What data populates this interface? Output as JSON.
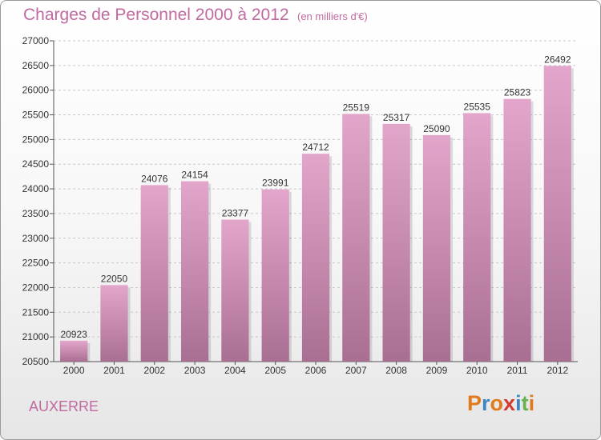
{
  "header": {
    "title": "Charges de Personnel 2000 à 2012",
    "subtitle": "(en milliers d'€)"
  },
  "footer": {
    "city": "AUXERRE",
    "logo": {
      "text": "Proxiti",
      "letters": [
        {
          "ch": "P",
          "color": "#e07a1c"
        },
        {
          "ch": "r",
          "color": "#3a86c8"
        },
        {
          "ch": "o",
          "color": "#e07a1c"
        },
        {
          "ch": "x",
          "color": "#d23a2e"
        },
        {
          "ch": "i",
          "color": "#3a86c8"
        },
        {
          "ch": "t",
          "color": "#6ab04c"
        },
        {
          "ch": "i",
          "color": "#e07a1c"
        }
      ]
    }
  },
  "colors": {
    "bar_top": "#e3a6cb",
    "bar_bottom": "#a96f92",
    "title": "#c06aa0"
  },
  "chart_data": {
    "type": "bar",
    "title": "Charges de Personnel 2000 à 2012",
    "subtitle": "(en milliers d'€)",
    "xlabel": "",
    "ylabel": "",
    "categories": [
      "2000",
      "2001",
      "2002",
      "2003",
      "2004",
      "2005",
      "2006",
      "2007",
      "2008",
      "2009",
      "2010",
      "2011",
      "2012"
    ],
    "values": [
      20923,
      22050,
      24076,
      24154,
      23377,
      23991,
      24712,
      25519,
      25317,
      25090,
      25535,
      25823,
      26492
    ],
    "ylim": [
      20500,
      27000
    ],
    "yticks": [
      20500,
      21000,
      21500,
      22000,
      22500,
      23000,
      23500,
      24000,
      24500,
      25000,
      25500,
      26000,
      26500,
      27000
    ],
    "grid": true,
    "legend": "none",
    "data_labels": true
  }
}
